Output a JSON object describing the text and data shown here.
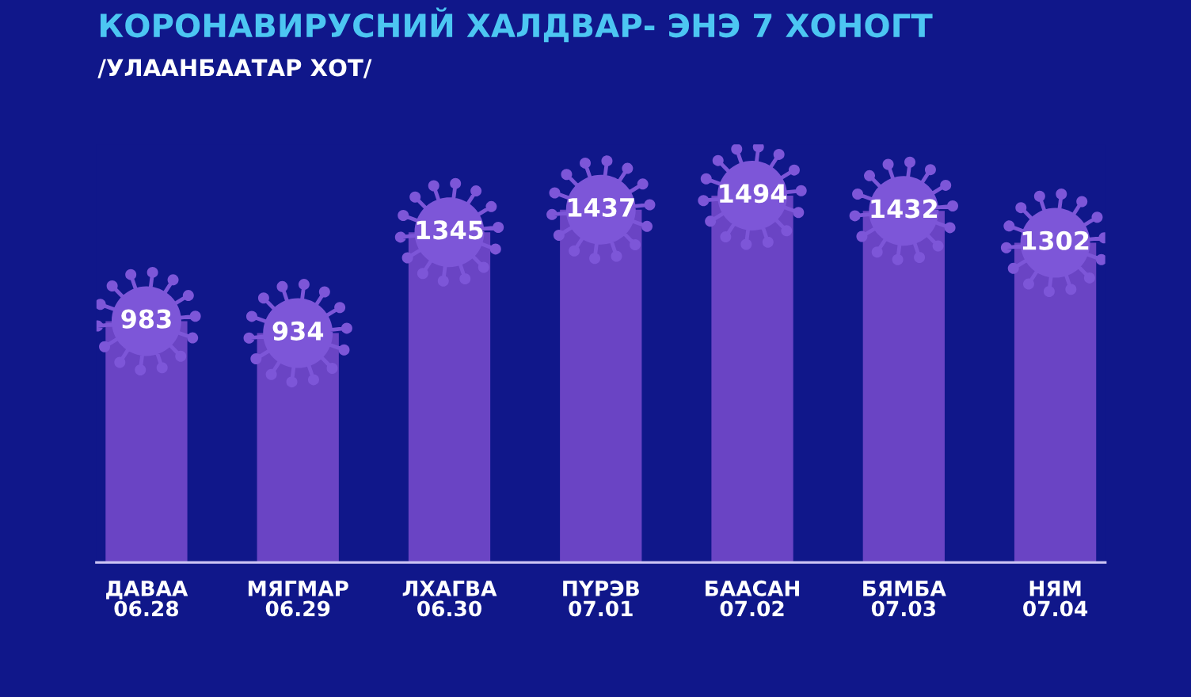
{
  "chart_data": {
    "type": "bar",
    "title": "КОРОНАВИРУСНИЙ ХАЛДВАР- ЭНЭ 7 ХОНОГТ",
    "subtitle": "/УЛААНБААТАР ХОТ/",
    "categories": [
      "ДАВАА\n06.28",
      "МЯГМАР\n06.29",
      "ЛХАГВА\n06.30",
      "ПҮРЭВ\n07.01",
      "БААСАН\n07.02",
      "БЯМБА\n07.03",
      "НЯМ\n07.04"
    ],
    "values": [
      983,
      934,
      1345,
      1437,
      1494,
      1432,
      1302
    ],
    "color": "#6a44c4",
    "data_labels": true,
    "tick_labels": "x"
  }
}
